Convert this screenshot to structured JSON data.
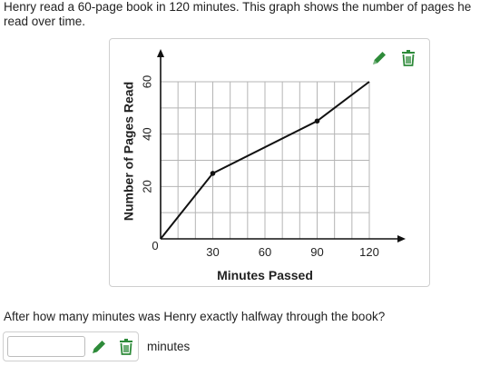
{
  "prompt": {
    "intro": "Henry read a 60-page book in 120 minutes. This graph shows the number of pages he read over time.",
    "question": "After how many minutes was Henry exactly halfway through the book?",
    "answer_value": "",
    "answer_placeholder": "",
    "unit": "minutes"
  },
  "icons": {
    "edit": "pencil-icon",
    "delete": "trash-icon",
    "tool_color": "#2e8b3a"
  },
  "chart_data": {
    "type": "line",
    "title": "",
    "xlabel": "Minutes Passed",
    "ylabel": "Number of Pages Read",
    "xlim": [
      0,
      120
    ],
    "ylim": [
      0,
      60
    ],
    "x_ticks": [
      30,
      60,
      90,
      120
    ],
    "y_ticks": [
      20,
      40,
      60
    ],
    "origin_label": "0",
    "grid": true,
    "series": [
      {
        "points": [
          {
            "x": 0,
            "y": 0
          },
          {
            "x": 30,
            "y": 25
          },
          {
            "x": 90,
            "y": 45
          },
          {
            "x": 120,
            "y": 60
          }
        ],
        "marked_points": [
          {
            "x": 30,
            "y": 25
          },
          {
            "x": 90,
            "y": 45
          }
        ]
      }
    ]
  }
}
